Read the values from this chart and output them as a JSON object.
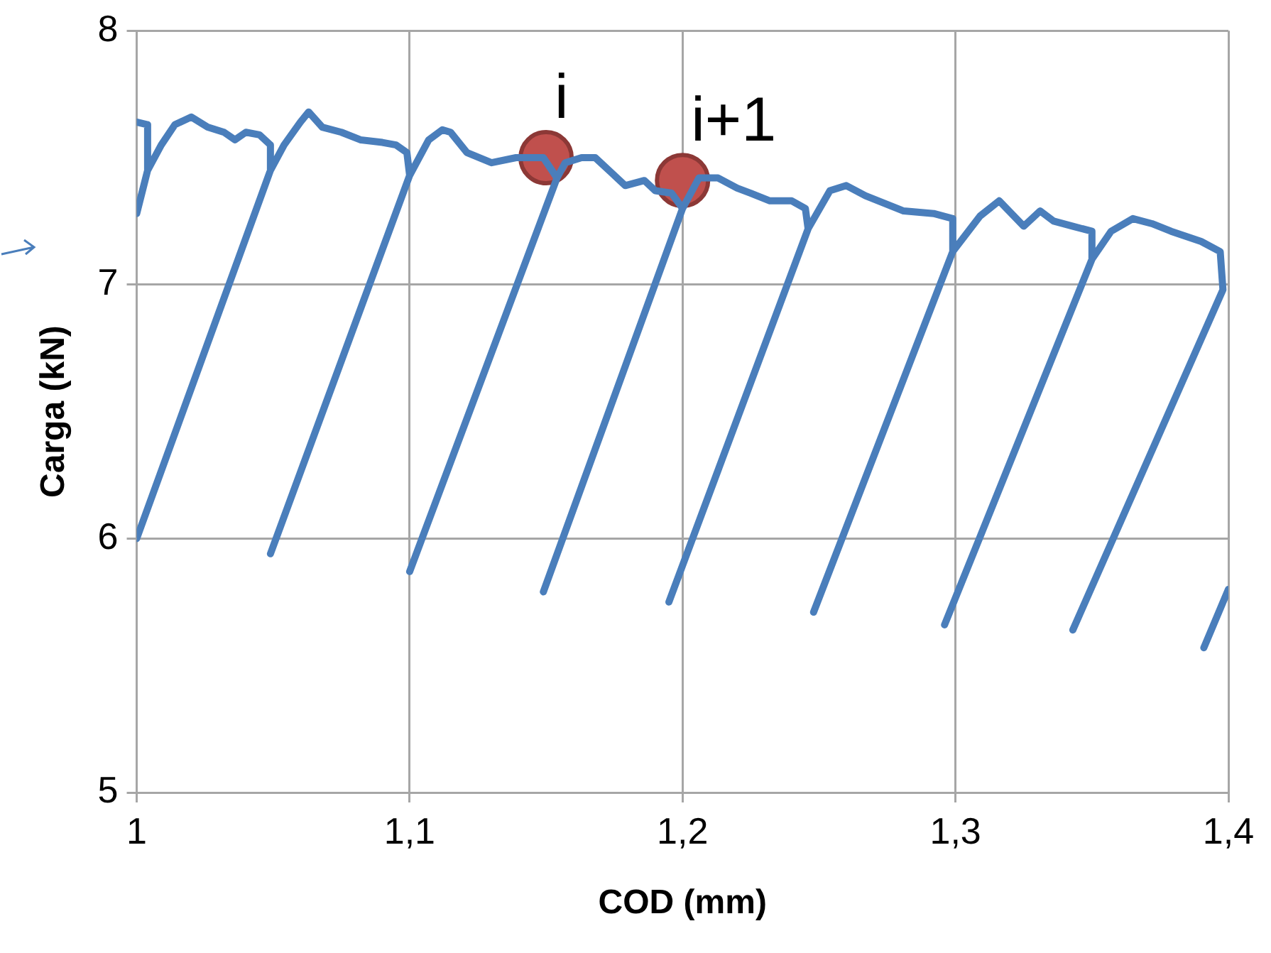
{
  "chart_data": {
    "type": "line",
    "xlabel": "COD (mm)",
    "ylabel": "Carga (kN)",
    "xlim": [
      1,
      1.4
    ],
    "xticks": [
      1,
      {
        "value": 1.1,
        "label": "1,1"
      },
      {
        "value": 1.2,
        "label": "1,2"
      },
      {
        "value": 1.3,
        "label": "1,3"
      },
      {
        "value": 1.4,
        "label": "1,4"
      }
    ],
    "ylim": [
      5,
      8
    ],
    "yticks": [
      5,
      6,
      7,
      8
    ],
    "grid": true,
    "legend": false,
    "series": [
      {
        "color": "#4a7ebb",
        "marker": "none",
        "x": [
          1.0,
          1.004,
          1.004,
          1.0,
          1.004,
          1.009,
          1.014,
          1.02,
          1.026,
          1.032,
          1.036,
          1.04,
          1.045,
          1.049,
          1.049,
          1.0,
          1.049,
          1.054,
          1.06,
          1.063,
          1.068,
          1.075,
          1.082,
          1.09,
          1.095,
          1.099,
          1.1,
          1.049,
          1.1,
          1.107,
          1.112,
          1.115,
          1.121,
          1.13,
          1.139,
          1.149,
          1.154,
          1.1,
          1.154,
          1.157,
          1.163,
          1.168,
          1.174,
          1.179,
          1.186,
          1.19,
          1.196,
          1.2,
          1.149,
          1.2,
          1.206,
          1.213,
          1.22,
          1.225,
          1.232,
          1.24,
          1.245,
          1.246,
          1.195,
          1.246,
          1.254,
          1.26,
          1.267,
          1.281,
          1.292,
          1.299,
          1.299,
          1.248,
          1.299,
          1.309,
          1.316,
          1.325,
          1.331,
          1.336,
          1.343,
          1.35,
          1.35,
          1.296,
          1.35,
          1.357,
          1.365,
          1.372,
          1.379,
          1.39,
          1.397,
          1.398,
          1.343,
          1.398
        ],
        "values": [
          7.64,
          7.63,
          7.45,
          7.28,
          7.45,
          7.55,
          7.63,
          7.66,
          7.62,
          7.6,
          7.57,
          7.6,
          7.59,
          7.55,
          7.45,
          6.0,
          7.45,
          7.55,
          7.64,
          7.68,
          7.62,
          7.6,
          7.57,
          7.56,
          7.55,
          7.52,
          7.43,
          5.94,
          7.43,
          7.57,
          7.61,
          7.6,
          7.52,
          7.48,
          7.5,
          7.5,
          7.42,
          5.87,
          7.42,
          7.48,
          7.5,
          7.5,
          7.44,
          7.39,
          7.41,
          7.37,
          7.36,
          7.3,
          5.79,
          7.3,
          7.42,
          7.42,
          7.38,
          7.36,
          7.33,
          7.33,
          7.3,
          7.22,
          5.75,
          7.22,
          7.37,
          7.39,
          7.35,
          7.29,
          7.28,
          7.26,
          7.13,
          5.71,
          7.13,
          7.27,
          7.33,
          7.23,
          7.29,
          7.25,
          7.23,
          7.21,
          7.1,
          5.66,
          7.1,
          7.21,
          7.26,
          7.24,
          7.21,
          7.17,
          7.13,
          6.98,
          5.64,
          6.98
        ]
      },
      {
        "color": "#4a7ebb",
        "marker": "none",
        "x": [
          1.391,
          1.4
        ],
        "values": [
          5.57,
          5.8
        ]
      },
      {
        "type": "scatter",
        "color": "#c0504d",
        "marker": "circle",
        "x": [
          1.15,
          1.2
        ],
        "values": [
          7.5,
          7.41
        ]
      }
    ],
    "annotations": [
      {
        "text": "i",
        "x": 1.15,
        "y": 7.5
      },
      {
        "text": "i+1",
        "x": 1.2,
        "y": 7.41
      }
    ]
  }
}
